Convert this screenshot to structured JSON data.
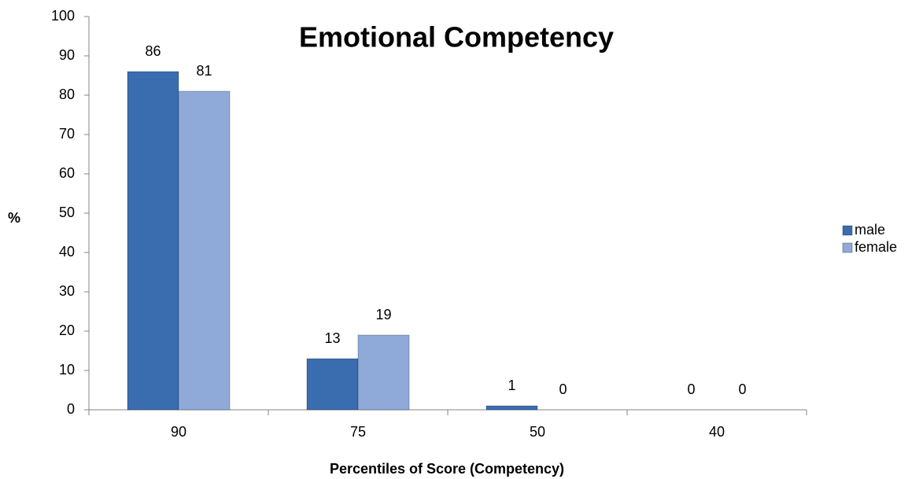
{
  "chart_data": {
    "type": "bar",
    "title": "Emotional Competency",
    "x_label": "Percentiles of Score (Competency)",
    "y_label": "%",
    "categories": [
      "90",
      "75",
      "50",
      "40"
    ],
    "series": [
      {
        "name": "male",
        "color": "#3a6cb0",
        "values": [
          86,
          13,
          1,
          0
        ]
      },
      {
        "name": "female",
        "color": "#8faad8",
        "values": [
          81,
          19,
          0,
          0
        ]
      }
    ],
    "ylim": [
      0,
      100
    ],
    "yticks": [
      0,
      10,
      20,
      30,
      40,
      50,
      60,
      70,
      80,
      90,
      100
    ],
    "legend": "right"
  }
}
